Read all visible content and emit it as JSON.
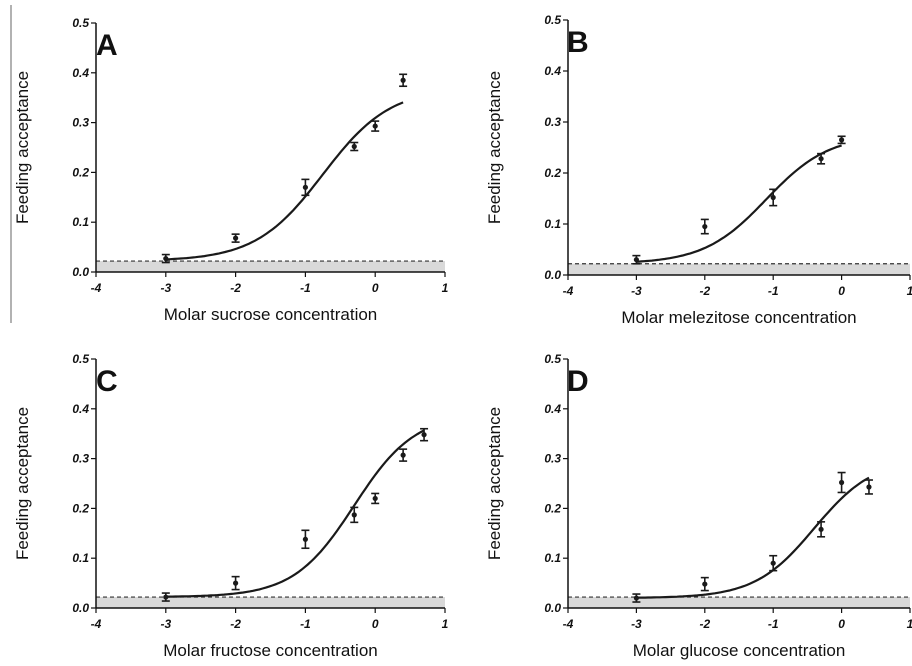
{
  "chart_data": [
    {
      "type": "scatter",
      "panel": "A",
      "xlabel": "Molar sucrose concentration",
      "ylabel": "Feeding acceptance",
      "xlim": [
        -4,
        1
      ],
      "ylim": [
        0,
        0.5
      ],
      "xticks": [
        "-4",
        "-3",
        "-2",
        "-1",
        "0",
        "1"
      ],
      "yticks": [
        "0.0",
        "0.1",
        "0.2",
        "0.3",
        "0.4",
        "0.5"
      ],
      "baseline": 0.022,
      "points": [
        {
          "x": -3,
          "y": 0.027,
          "err": 0.008
        },
        {
          "x": -2,
          "y": 0.068,
          "err": 0.008
        },
        {
          "x": -1,
          "y": 0.17,
          "err": 0.016
        },
        {
          "x": -0.3,
          "y": 0.252,
          "err": 0.008
        },
        {
          "x": 0,
          "y": 0.293,
          "err": 0.01
        },
        {
          "x": 0.4,
          "y": 0.385,
          "err": 0.012
        }
      ],
      "fit": {
        "bottom": 0.022,
        "top": 0.37,
        "ec50": -0.75,
        "slope": 0.9,
        "x_range": [
          -3,
          0.4
        ]
      }
    },
    {
      "type": "scatter",
      "panel": "B",
      "xlabel": "Molar melezitose concentration",
      "ylabel": "Feeding acceptance",
      "xlim": [
        -4,
        1
      ],
      "ylim": [
        0,
        0.5
      ],
      "xticks": [
        "-4",
        "-3",
        "-2",
        "-1",
        "0",
        "1"
      ],
      "yticks": [
        "0.0",
        "0.1",
        "0.2",
        "0.3",
        "0.4",
        "0.5"
      ],
      "baseline": 0.022,
      "points": [
        {
          "x": -3,
          "y": 0.03,
          "err": 0.008
        },
        {
          "x": -2,
          "y": 0.095,
          "err": 0.014
        },
        {
          "x": -1,
          "y": 0.152,
          "err": 0.016
        },
        {
          "x": -0.3,
          "y": 0.228,
          "err": 0.01
        },
        {
          "x": 0,
          "y": 0.265,
          "err": 0.007
        }
      ],
      "fit": {
        "bottom": 0.022,
        "top": 0.275,
        "ec50": -1.1,
        "slope": 0.95,
        "x_range": [
          -3,
          0
        ]
      }
    },
    {
      "type": "scatter",
      "panel": "C",
      "xlabel": "Molar fructose concentration",
      "ylabel": "Feeding acceptance",
      "xlim": [
        -4,
        1
      ],
      "ylim": [
        0,
        0.5
      ],
      "xticks": [
        "-4",
        "-3",
        "-2",
        "-1",
        "0",
        "1"
      ],
      "yticks": [
        "0.0",
        "0.1",
        "0.2",
        "0.3",
        "0.4",
        "0.5"
      ],
      "baseline": 0.022,
      "points": [
        {
          "x": -3,
          "y": 0.022,
          "err": 0.008
        },
        {
          "x": -2,
          "y": 0.05,
          "err": 0.013
        },
        {
          "x": -1,
          "y": 0.138,
          "err": 0.018
        },
        {
          "x": -0.3,
          "y": 0.187,
          "err": 0.015
        },
        {
          "x": 0,
          "y": 0.22,
          "err": 0.01
        },
        {
          "x": 0.4,
          "y": 0.307,
          "err": 0.012
        },
        {
          "x": 0.7,
          "y": 0.348,
          "err": 0.012
        }
      ],
      "fit": {
        "bottom": 0.022,
        "top": 0.39,
        "ec50": -0.3,
        "slope": 1.0,
        "x_range": [
          -3,
          0.7
        ]
      }
    },
    {
      "type": "scatter",
      "panel": "D",
      "xlabel": "Molar glucose concentration",
      "ylabel": "Feeding acceptance",
      "xlim": [
        -4,
        1
      ],
      "ylim": [
        0,
        0.5
      ],
      "xticks": [
        "-4",
        "-3",
        "-2",
        "-1",
        "0",
        "1"
      ],
      "yticks": [
        "0.0",
        "0.1",
        "0.2",
        "0.3",
        "0.4",
        "0.5"
      ],
      "baseline": 0.022,
      "points": [
        {
          "x": -3,
          "y": 0.02,
          "err": 0.008
        },
        {
          "x": -2,
          "y": 0.048,
          "err": 0.013
        },
        {
          "x": -1,
          "y": 0.09,
          "err": 0.015
        },
        {
          "x": -0.3,
          "y": 0.158,
          "err": 0.015
        },
        {
          "x": 0,
          "y": 0.252,
          "err": 0.02
        },
        {
          "x": 0.4,
          "y": 0.243,
          "err": 0.014
        }
      ],
      "fit": {
        "bottom": 0.02,
        "top": 0.3,
        "ec50": -0.4,
        "slope": 1.0,
        "x_range": [
          -3,
          0.4
        ]
      }
    }
  ],
  "colors": {
    "line": "#1a1a1a",
    "band": "#d9d9d9",
    "dash": "#333333",
    "axis": "#111111"
  }
}
